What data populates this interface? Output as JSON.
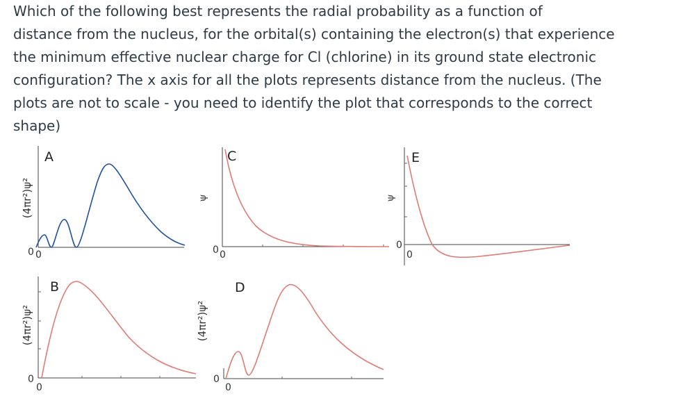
{
  "question": {
    "lines": [
      "Which of the following best represents the radial probability as a function of",
      "distance from the nucleus, for the orbital(s) containing the electron(s) that experience",
      "the minimum effective nuclear charge for Cl (chlorine) in its ground state electronic",
      "configuration? The x axis for all the plots represents distance from the nucleus. (The",
      "plots are not to scale - you need to identify the plot that corresponds to the correct",
      "shape)"
    ]
  },
  "plots": {
    "A": {
      "letter": "A",
      "ylabel": "(4πr²)ψ²",
      "origin_y": "0",
      "origin_x": "0"
    },
    "B": {
      "letter": "B",
      "ylabel": "(4πr²)ψ²",
      "origin_y": "0",
      "origin_x": "0"
    },
    "C": {
      "letter": "C",
      "ylabel": "ψ",
      "origin_y": "0",
      "origin_x": "0"
    },
    "D": {
      "letter": "D",
      "ylabel": "(4πr²)ψ²",
      "origin_y": "0",
      "origin_x": "0"
    },
    "E": {
      "letter": "E",
      "ylabel": "ψ",
      "origin_y": "0",
      "origin_x": "0"
    }
  },
  "colors": {
    "text": "#2d3b45",
    "curve_blue": "#1f4fa0",
    "curve_red": "#e07a72",
    "axis": "#444444"
  }
}
